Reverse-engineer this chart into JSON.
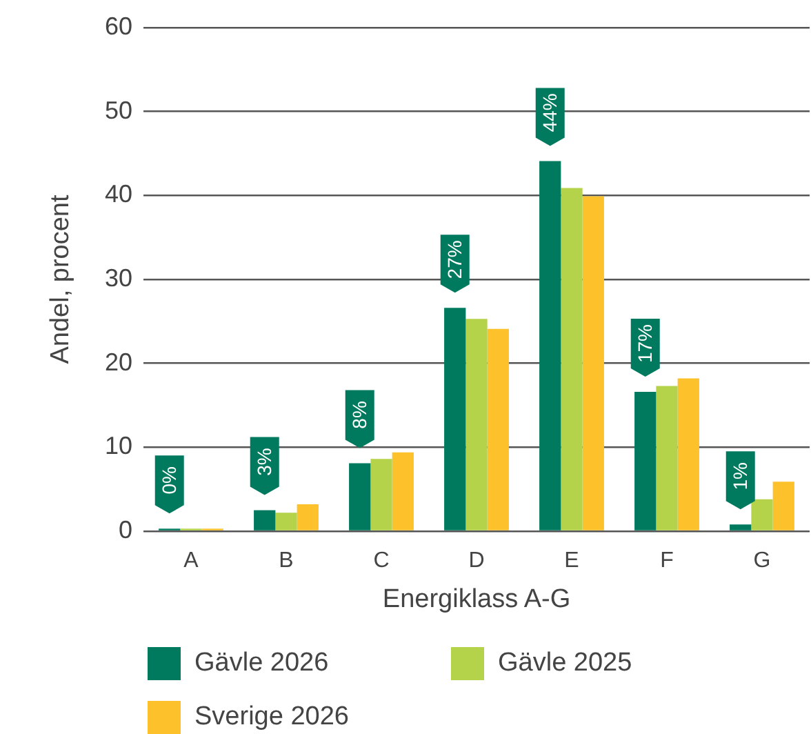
{
  "chart_data": {
    "type": "bar",
    "categories": [
      "A",
      "B",
      "C",
      "D",
      "E",
      "F",
      "G"
    ],
    "xlabel": "Energiklass A-G",
    "ylabel": "Andel, procent",
    "ylim": [
      0,
      60
    ],
    "yticks": [
      0,
      10,
      20,
      30,
      40,
      50,
      60
    ],
    "grid": "y",
    "legend": "bottom",
    "series": [
      {
        "name": "Gävle 2026",
        "color": "#007a5e",
        "values": [
          0.3,
          2.5,
          8.1,
          26.6,
          44.1,
          16.6,
          0.8
        ],
        "value_labels": [
          "0%",
          "3%",
          "8%",
          "27%",
          "44%",
          "17%",
          "1%"
        ]
      },
      {
        "name": "Gävle 2025",
        "color": "#b5d34a",
        "values": [
          0.3,
          2.2,
          8.6,
          25.3,
          40.9,
          17.3,
          3.8
        ]
      },
      {
        "name": "Sverige 2026",
        "color": "#fdc12b",
        "values": [
          0.3,
          3.2,
          9.4,
          24.1,
          39.9,
          18.2,
          5.9
        ]
      }
    ]
  }
}
